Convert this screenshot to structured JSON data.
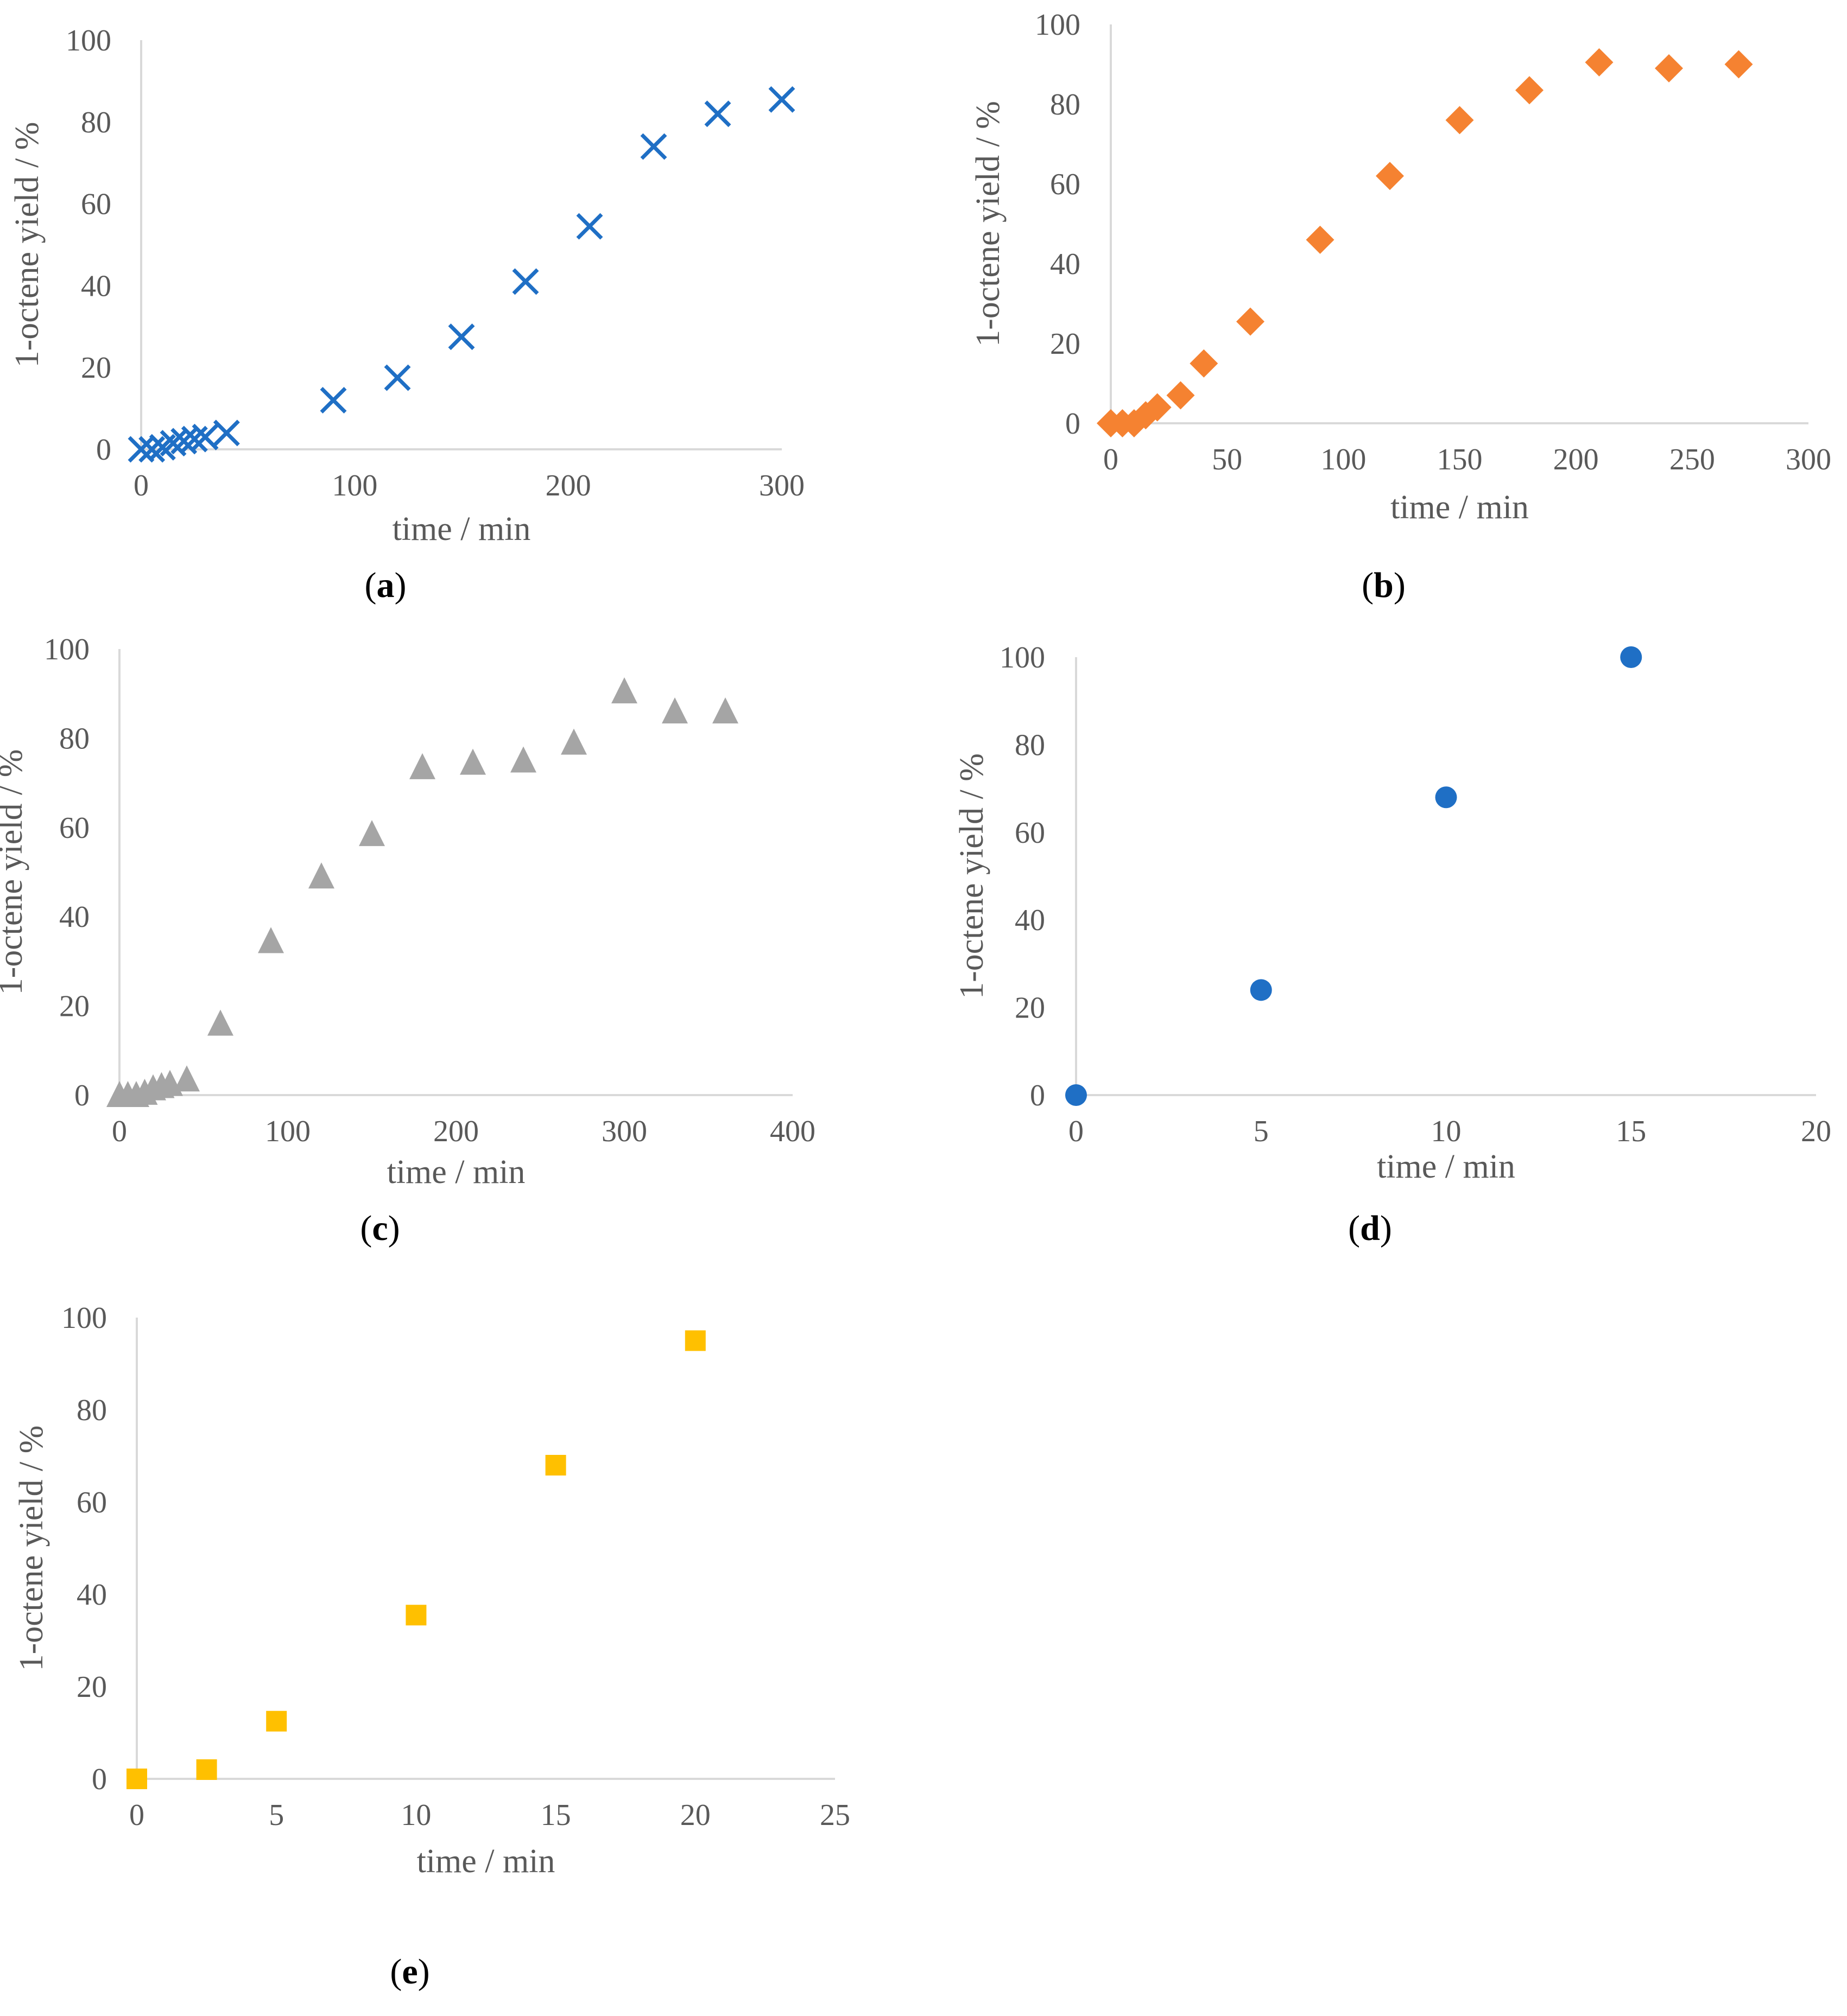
{
  "colors": {
    "axis": "#d9d9d9",
    "text": "#595959",
    "caption": "#000000"
  },
  "chart_data": [
    {
      "id": "a",
      "type": "scatter",
      "caption_letter": "a",
      "marker": "cross",
      "color": "#1f6fc5",
      "xlabel": "time / min",
      "ylabel": "1-octene yield / %",
      "xlim": [
        0,
        300
      ],
      "ylim": [
        0,
        100
      ],
      "xticks": [
        "0",
        "100",
        "200",
        "300"
      ],
      "yticks": [
        "0",
        "20",
        "40",
        "60",
        "80",
        "100"
      ],
      "x": [
        0,
        5,
        10,
        15,
        20,
        25,
        30,
        40,
        90,
        120,
        150,
        180,
        210,
        240,
        270,
        300
      ],
      "y": [
        0,
        0,
        0.5,
        1.5,
        2,
        2.5,
        3,
        4,
        12,
        17.5,
        27.5,
        41,
        54.5,
        74,
        82,
        85.5
      ]
    },
    {
      "id": "b",
      "type": "scatter",
      "caption_letter": "b",
      "marker": "diamond",
      "color": "#f58231",
      "xlabel": "time / min",
      "ylabel": "1-octene yield / %",
      "xlim": [
        0,
        300
      ],
      "ylim": [
        0,
        100
      ],
      "xticks": [
        "0",
        "50",
        "100",
        "150",
        "200",
        "250",
        "300"
      ],
      "yticks": [
        "0",
        "20",
        "40",
        "60",
        "80",
        "100"
      ],
      "x": [
        0,
        5,
        10,
        15,
        20,
        30,
        40,
        60,
        90,
        120,
        150,
        180,
        210,
        240,
        270
      ],
      "y": [
        0,
        0,
        0,
        2,
        4,
        7,
        15,
        25.5,
        46,
        62,
        76,
        83.5,
        90.5,
        89,
        90
      ]
    },
    {
      "id": "c",
      "type": "scatter",
      "caption_letter": "c",
      "marker": "triangle",
      "color": "#a5a5a5",
      "xlabel": "time / min",
      "ylabel": "1-octene yield / %",
      "xlim": [
        0,
        400
      ],
      "ylim": [
        0,
        100
      ],
      "xticks": [
        "0",
        "100",
        "200",
        "300",
        "400"
      ],
      "yticks": [
        "0",
        "20",
        "40",
        "60",
        "80",
        "100"
      ],
      "x": [
        0,
        5,
        10,
        15,
        20,
        25,
        30,
        40,
        60,
        90,
        120,
        150,
        180,
        210,
        240,
        270,
        300,
        330,
        360
      ],
      "y": [
        0,
        0,
        0,
        0.5,
        1.5,
        2,
        2.5,
        3.5,
        16,
        34.5,
        49,
        58.5,
        73.5,
        74.5,
        75,
        79,
        90.5,
        86,
        86
      ]
    },
    {
      "id": "d",
      "type": "scatter",
      "caption_letter": "d",
      "marker": "circle",
      "color": "#1f6fc5",
      "xlabel": "time / min",
      "ylabel": "1-octene yield / %",
      "xlim": [
        0,
        20
      ],
      "ylim": [
        0,
        100
      ],
      "xticks": [
        "0",
        "5",
        "10",
        "15",
        "20"
      ],
      "yticks": [
        "0",
        "20",
        "40",
        "60",
        "80",
        "100"
      ],
      "x": [
        0,
        5,
        10,
        15
      ],
      "y": [
        0,
        24,
        68,
        100
      ]
    },
    {
      "id": "e",
      "type": "scatter",
      "caption_letter": "e",
      "marker": "square",
      "color": "#ffc000",
      "xlabel": "time / min",
      "ylabel": "1-octene yield / %",
      "xlim": [
        0,
        25
      ],
      "ylim": [
        0,
        100
      ],
      "xticks": [
        "0",
        "5",
        "10",
        "15",
        "20",
        "25"
      ],
      "yticks": [
        "0",
        "20",
        "40",
        "60",
        "80",
        "100"
      ],
      "x": [
        0,
        2.5,
        5,
        10,
        15,
        20
      ],
      "y": [
        0,
        2,
        12.5,
        35.5,
        68,
        95
      ]
    }
  ]
}
